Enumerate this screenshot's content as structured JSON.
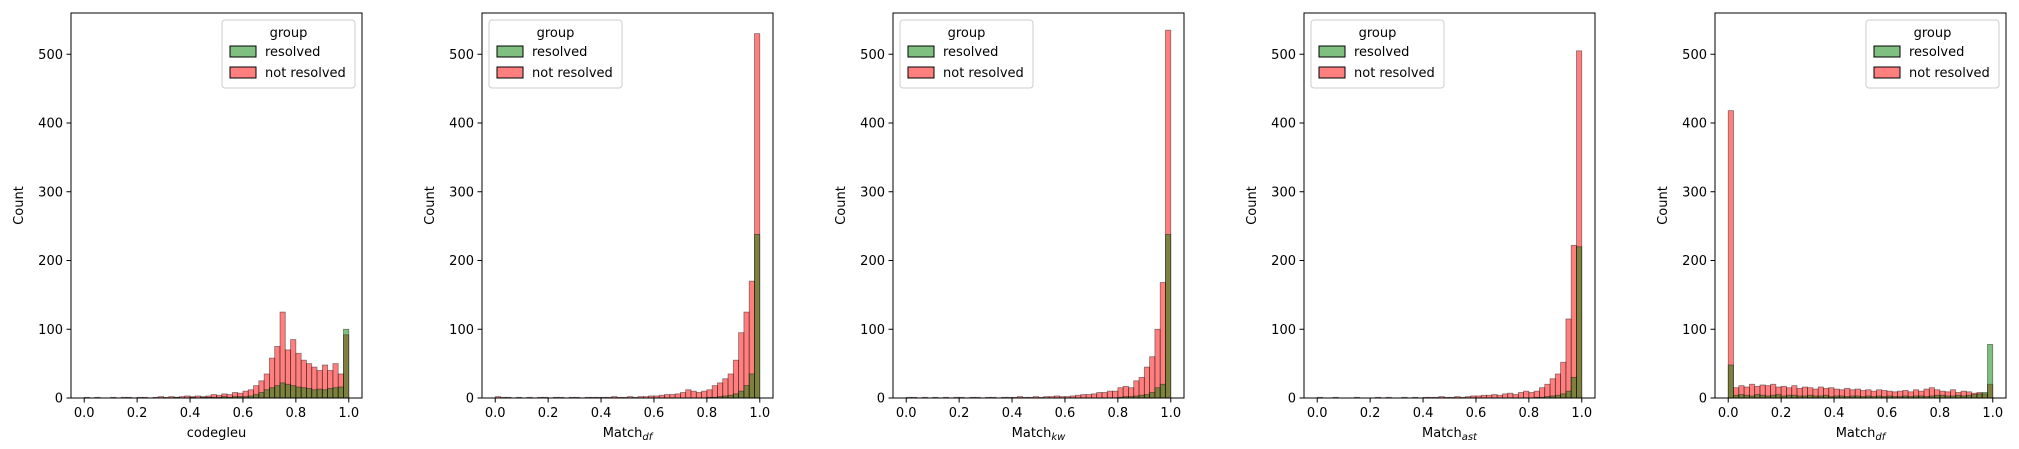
{
  "chart_data": [
    {
      "type": "histogram",
      "xlabel": "codegleu",
      "ylabel": "Count",
      "legend_title": "group",
      "legend": "upper right",
      "bins": [
        0,
        0.02,
        0.04,
        0.06,
        0.08,
        0.1,
        0.12,
        0.14,
        0.16,
        0.18,
        0.2,
        0.22,
        0.24,
        0.26,
        0.28,
        0.3,
        0.32,
        0.34,
        0.36,
        0.38,
        0.4,
        0.42,
        0.44,
        0.46,
        0.48,
        0.5,
        0.52,
        0.54,
        0.56,
        0.58,
        0.6,
        0.62,
        0.64,
        0.66,
        0.68,
        0.7,
        0.72,
        0.74,
        0.76,
        0.78,
        0.8,
        0.82,
        0.84,
        0.86,
        0.88,
        0.9,
        0.92,
        0.94,
        0.96,
        0.98,
        1
      ],
      "series": [
        {
          "name": "resolved",
          "color": "#008000",
          "values": [
            0,
            0,
            0,
            0,
            0,
            0,
            0,
            0,
            0,
            0,
            0,
            0,
            0,
            0,
            0,
            0,
            0,
            1,
            0,
            0,
            1,
            0,
            1,
            1,
            1,
            1,
            2,
            1,
            2,
            2,
            2,
            3,
            5,
            8,
            12,
            15,
            18,
            22,
            20,
            18,
            16,
            15,
            14,
            12,
            13,
            12,
            14,
            15,
            16,
            100
          ]
        },
        {
          "name": "not resolved",
          "color": "#ff0000",
          "values": [
            1,
            0,
            1,
            0,
            0,
            1,
            0,
            1,
            1,
            0,
            1,
            1,
            0,
            1,
            2,
            1,
            2,
            1,
            2,
            3,
            2,
            3,
            2,
            3,
            5,
            4,
            6,
            5,
            8,
            7,
            10,
            12,
            18,
            25,
            35,
            58,
            75,
            125,
            70,
            85,
            65,
            55,
            50,
            45,
            40,
            48,
            40,
            50,
            35,
            92
          ]
        }
      ],
      "xlim": [
        -0.05,
        1.05
      ],
      "xticks": [
        {
          "value": 0,
          "label": "0.0"
        },
        0.2,
        0.4,
        0.6,
        0.8,
        {
          "value": 1,
          "label": "1.0"
        }
      ],
      "ylim": [
        0,
        560
      ],
      "yticks": [
        0,
        100,
        200,
        300,
        400,
        500
      ]
    },
    {
      "type": "histogram",
      "xlabel": "Match",
      "xlabel_subscript": "df",
      "ylabel": "Count",
      "legend_title": "group",
      "legend": "upper left",
      "bins": [
        0,
        0.02,
        0.04,
        0.06,
        0.08,
        0.1,
        0.12,
        0.14,
        0.16,
        0.18,
        0.2,
        0.22,
        0.24,
        0.26,
        0.28,
        0.3,
        0.32,
        0.34,
        0.36,
        0.38,
        0.4,
        0.42,
        0.44,
        0.46,
        0.48,
        0.5,
        0.52,
        0.54,
        0.56,
        0.58,
        0.6,
        0.62,
        0.64,
        0.66,
        0.68,
        0.7,
        0.72,
        0.74,
        0.76,
        0.78,
        0.8,
        0.82,
        0.84,
        0.86,
        0.88,
        0.9,
        0.92,
        0.94,
        0.96,
        0.98,
        1
      ],
      "series": [
        {
          "name": "resolved",
          "color": "#008000",
          "values": [
            0,
            0,
            0,
            0,
            0,
            0,
            0,
            0,
            0,
            0,
            0,
            0,
            0,
            0,
            0,
            0,
            0,
            0,
            0,
            0,
            0,
            0,
            0,
            0,
            0,
            0,
            0,
            0,
            0,
            0,
            0,
            0,
            0,
            0,
            0,
            0,
            0,
            0,
            0,
            0,
            1,
            1,
            2,
            3,
            4,
            6,
            10,
            18,
            35,
            238
          ]
        },
        {
          "name": "not resolved",
          "color": "#ff0000",
          "values": [
            2,
            1,
            1,
            0,
            1,
            0,
            1,
            0,
            1,
            1,
            0,
            1,
            1,
            0,
            1,
            1,
            0,
            1,
            1,
            1,
            1,
            1,
            2,
            1,
            1,
            2,
            1,
            2,
            2,
            3,
            3,
            4,
            5,
            5,
            6,
            8,
            12,
            10,
            8,
            10,
            12,
            18,
            22,
            28,
            35,
            55,
            95,
            125,
            170,
            530
          ]
        }
      ],
      "xlim": [
        -0.05,
        1.05
      ],
      "xticks": [
        {
          "value": 0,
          "label": "0.0"
        },
        0.2,
        0.4,
        0.6,
        0.8,
        {
          "value": 1,
          "label": "1.0"
        }
      ],
      "ylim": [
        0,
        560
      ],
      "yticks": [
        0,
        100,
        200,
        300,
        400,
        500
      ]
    },
    {
      "type": "histogram",
      "xlabel": "Match",
      "xlabel_subscript": "kw",
      "ylabel": "Count",
      "legend_title": "group",
      "legend": "upper left",
      "bins": [
        0,
        0.02,
        0.04,
        0.06,
        0.08,
        0.1,
        0.12,
        0.14,
        0.16,
        0.18,
        0.2,
        0.22,
        0.24,
        0.26,
        0.28,
        0.3,
        0.32,
        0.34,
        0.36,
        0.38,
        0.4,
        0.42,
        0.44,
        0.46,
        0.48,
        0.5,
        0.52,
        0.54,
        0.56,
        0.58,
        0.6,
        0.62,
        0.64,
        0.66,
        0.68,
        0.7,
        0.72,
        0.74,
        0.76,
        0.78,
        0.8,
        0.82,
        0.84,
        0.86,
        0.88,
        0.9,
        0.92,
        0.94,
        0.96,
        0.98,
        1
      ],
      "series": [
        {
          "name": "resolved",
          "color": "#008000",
          "values": [
            0,
            0,
            0,
            0,
            0,
            0,
            0,
            0,
            0,
            0,
            0,
            0,
            0,
            0,
            0,
            0,
            0,
            0,
            0,
            0,
            0,
            0,
            0,
            0,
            0,
            0,
            0,
            0,
            0,
            0,
            0,
            0,
            0,
            0,
            0,
            0,
            0,
            0,
            0,
            0,
            1,
            2,
            2,
            3,
            4,
            5,
            8,
            15,
            20,
            238
          ]
        },
        {
          "name": "not resolved",
          "color": "#ff0000",
          "values": [
            1,
            1,
            0,
            1,
            0,
            1,
            0,
            1,
            0,
            1,
            1,
            0,
            1,
            1,
            0,
            1,
            1,
            0,
            1,
            1,
            1,
            2,
            1,
            1,
            2,
            1,
            2,
            2,
            3,
            2,
            2,
            3,
            4,
            5,
            5,
            6,
            8,
            8,
            10,
            10,
            15,
            17,
            15,
            25,
            30,
            45,
            60,
            100,
            168,
            535
          ]
        }
      ],
      "xlim": [
        -0.05,
        1.05
      ],
      "xticks": [
        {
          "value": 0,
          "label": "0.0"
        },
        0.2,
        0.4,
        0.6,
        0.8,
        {
          "value": 1,
          "label": "1.0"
        }
      ],
      "ylim": [
        0,
        560
      ],
      "yticks": [
        0,
        100,
        200,
        300,
        400,
        500
      ]
    },
    {
      "type": "histogram",
      "xlabel": "Match",
      "xlabel_subscript": "ast",
      "ylabel": "Count",
      "legend_title": "group",
      "legend": "upper left",
      "bins": [
        0,
        0.02,
        0.04,
        0.06,
        0.08,
        0.1,
        0.12,
        0.14,
        0.16,
        0.18,
        0.2,
        0.22,
        0.24,
        0.26,
        0.28,
        0.3,
        0.32,
        0.34,
        0.36,
        0.38,
        0.4,
        0.42,
        0.44,
        0.46,
        0.48,
        0.5,
        0.52,
        0.54,
        0.56,
        0.58,
        0.6,
        0.62,
        0.64,
        0.66,
        0.68,
        0.7,
        0.72,
        0.74,
        0.76,
        0.78,
        0.8,
        0.82,
        0.84,
        0.86,
        0.88,
        0.9,
        0.92,
        0.94,
        0.96,
        0.98,
        1
      ],
      "series": [
        {
          "name": "resolved",
          "color": "#008000",
          "values": [
            0,
            0,
            0,
            0,
            0,
            0,
            0,
            0,
            0,
            0,
            0,
            0,
            0,
            0,
            0,
            0,
            0,
            0,
            0,
            0,
            0,
            0,
            0,
            0,
            0,
            0,
            0,
            0,
            0,
            0,
            0,
            0,
            0,
            0,
            0,
            0,
            0,
            0,
            0,
            0,
            0,
            1,
            1,
            2,
            3,
            4,
            6,
            10,
            30,
            220
          ]
        },
        {
          "name": "not resolved",
          "color": "#ff0000",
          "values": [
            1,
            0,
            0,
            1,
            0,
            0,
            0,
            1,
            0,
            0,
            0,
            1,
            0,
            1,
            0,
            0,
            1,
            0,
            1,
            0,
            1,
            1,
            1,
            2,
            1,
            1,
            2,
            1,
            2,
            3,
            3,
            4,
            4,
            5,
            4,
            6,
            7,
            5,
            8,
            10,
            8,
            10,
            15,
            20,
            28,
            35,
            52,
            115,
            222,
            505
          ]
        }
      ],
      "xlim": [
        -0.05,
        1.05
      ],
      "xticks": [
        {
          "value": 0,
          "label": "0.0"
        },
        0.2,
        0.4,
        0.6,
        0.8,
        {
          "value": 1,
          "label": "1.0"
        }
      ],
      "ylim": [
        0,
        560
      ],
      "yticks": [
        0,
        100,
        200,
        300,
        400,
        500
      ]
    },
    {
      "type": "histogram",
      "xlabel": "Match",
      "xlabel_subscript": "df",
      "ylabel": "Count",
      "legend_title": "group",
      "legend": "upper right",
      "bins": [
        0,
        0.02,
        0.04,
        0.06,
        0.08,
        0.1,
        0.12,
        0.14,
        0.16,
        0.18,
        0.2,
        0.22,
        0.24,
        0.26,
        0.28,
        0.3,
        0.32,
        0.34,
        0.36,
        0.38,
        0.4,
        0.42,
        0.44,
        0.46,
        0.48,
        0.5,
        0.52,
        0.54,
        0.56,
        0.58,
        0.6,
        0.62,
        0.64,
        0.66,
        0.68,
        0.7,
        0.72,
        0.74,
        0.76,
        0.78,
        0.8,
        0.82,
        0.84,
        0.86,
        0.88,
        0.9,
        0.92,
        0.94,
        0.96,
        0.98,
        1
      ],
      "series": [
        {
          "name": "resolved",
          "color": "#008000",
          "values": [
            48,
            4,
            5,
            4,
            3,
            5,
            4,
            3,
            4,
            5,
            3,
            4,
            4,
            3,
            3,
            4,
            3,
            3,
            4,
            2,
            3,
            3,
            2,
            3,
            3,
            2,
            3,
            2,
            3,
            2,
            3,
            2,
            2,
            3,
            2,
            3,
            3,
            2,
            3,
            4,
            4,
            3,
            3,
            4,
            3,
            4,
            5,
            6,
            8,
            78
          ]
        },
        {
          "name": "not resolved",
          "color": "#ff0000",
          "values": [
            418,
            15,
            18,
            16,
            20,
            17,
            19,
            18,
            20,
            16,
            17,
            15,
            18,
            14,
            16,
            15,
            13,
            16,
            14,
            15,
            13,
            12,
            14,
            12,
            13,
            11,
            12,
            10,
            12,
            11,
            10,
            9,
            10,
            11,
            9,
            12,
            10,
            13,
            15,
            12,
            10,
            9,
            12,
            8,
            10,
            9,
            7,
            8,
            6,
            20
          ]
        }
      ],
      "xlim": [
        -0.05,
        1.05
      ],
      "xticks": [
        {
          "value": 0,
          "label": "0.0"
        },
        0.2,
        0.4,
        0.6,
        0.8,
        {
          "value": 1,
          "label": "1.0"
        }
      ],
      "ylim": [
        0,
        560
      ],
      "yticks": [
        0,
        100,
        200,
        300,
        400,
        500
      ]
    }
  ]
}
